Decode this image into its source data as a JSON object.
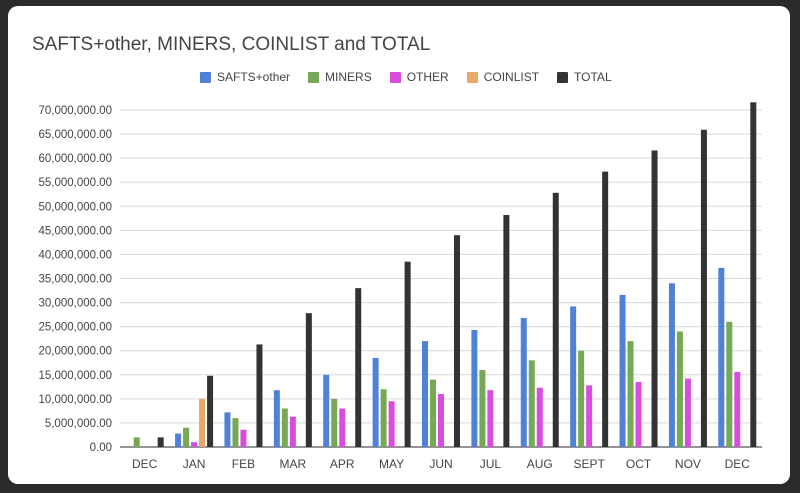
{
  "chart_data": {
    "type": "bar",
    "title": "SAFTS+other, MINERS, COINLIST and TOTAL",
    "xlabel": "",
    "ylabel": "",
    "categories": [
      "DEC",
      "JAN",
      "FEB",
      "MAR",
      "APR",
      "MAY",
      "JUN",
      "JUL",
      "AUG",
      "SEPT",
      "OCT",
      "NOV",
      "DEC"
    ],
    "ylim": [
      0,
      70000000
    ],
    "yticks": [
      "0.00",
      "5,000,000.00",
      "10,000,000.00",
      "15,000,000.00",
      "20,000,000.00",
      "25,000,000.00",
      "30,000,000.00",
      "35,000,000.00",
      "40,000,000.00",
      "45,000,000.00",
      "50,000,000.00",
      "55,000,000.00",
      "60,000,000.00",
      "65,000,000.00",
      "70,000,000.00"
    ],
    "grid": true,
    "legend_position": "top",
    "series": [
      {
        "name": "SAFTS+other",
        "color": "#4f81d8",
        "values": [
          0,
          2800000,
          7200000,
          11800000,
          15000000,
          18500000,
          22000000,
          24300000,
          26800000,
          29200000,
          31600000,
          34000000,
          37200000
        ]
      },
      {
        "name": "MINERS",
        "color": "#76a855",
        "values": [
          2000000,
          4000000,
          6000000,
          8000000,
          10000000,
          12000000,
          14000000,
          16000000,
          18000000,
          20000000,
          22000000,
          24000000,
          26000000
        ]
      },
      {
        "name": "OTHER",
        "color": "#d84de0",
        "values": [
          0,
          1000000,
          3600000,
          6300000,
          8000000,
          9500000,
          11000000,
          11800000,
          12300000,
          12800000,
          13500000,
          14200000,
          15600000
        ]
      },
      {
        "name": "COINLIST",
        "color": "#e8a868",
        "values": [
          0,
          10000000,
          0,
          0,
          0,
          0,
          0,
          0,
          0,
          0,
          0,
          0,
          0
        ]
      },
      {
        "name": "TOTAL",
        "color": "#333333",
        "values": [
          2000000,
          14800000,
          21300000,
          27800000,
          33000000,
          38500000,
          44000000,
          48200000,
          52800000,
          57200000,
          61600000,
          65900000,
          71600000
        ]
      }
    ]
  }
}
